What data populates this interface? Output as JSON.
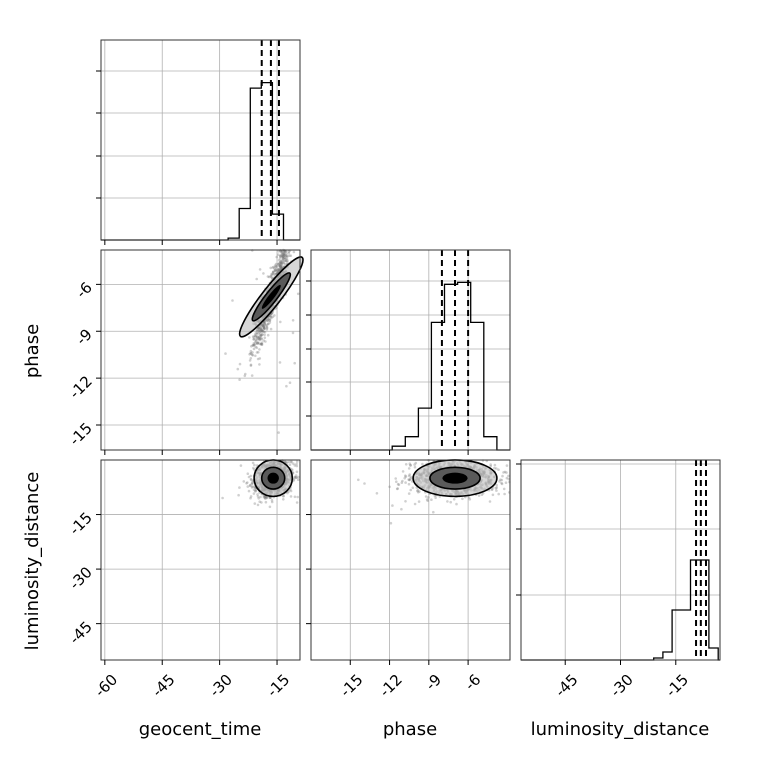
{
  "figure": {
    "type": "corner_plot",
    "parameters": [
      "geocent_time",
      "phase",
      "luminosity_distance"
    ],
    "grid": true,
    "quantile_lines": "dashed",
    "colors": {
      "frame": "#333333",
      "grid": "#b0b0b0",
      "ink": "#000000",
      "scatter": "#777777"
    }
  },
  "chart_data": [
    {
      "panel": "geocent_time",
      "type": "histogram",
      "xlim": [
        -61,
        -9
      ],
      "ylim": [
        0,
        1.08
      ],
      "tick_labels": [],
      "bins": [
        -27.8,
        -24.9,
        -22.0,
        -19.1,
        -16.2,
        -13.3,
        -10.4
      ],
      "counts": [
        0.01,
        0.17,
        0.82,
        0.85,
        0.14,
        0
      ],
      "quantiles": [
        -19.0,
        -16.6,
        -14.5
      ]
    },
    {
      "panel": "phase_vs_geocent_time",
      "type": "scatter",
      "xlim": [
        -61,
        -9
      ],
      "ylim": [
        -16.6,
        -3.8
      ],
      "xlabel": "",
      "ylabel": "phase",
      "ytick_labels": [
        "-6",
        "-9",
        "-12",
        "-15"
      ],
      "density_center": {
        "x": -16.5,
        "y": -6.8
      },
      "contours": 2,
      "points": 1000
    },
    {
      "panel": "phase",
      "type": "histogram",
      "xlim": [
        -18,
        -2.8
      ],
      "ylim": [
        0,
        1.05
      ],
      "tick_labels": [],
      "bins": [
        -11.8,
        -10.8,
        -9.8,
        -8.8,
        -7.8,
        -6.8,
        -5.8,
        -4.8,
        -3.8
      ],
      "counts": [
        0.02,
        0.07,
        0.22,
        0.67,
        0.87,
        0.88,
        0.67,
        0.07
      ],
      "quantiles": [
        -8.0,
        -7.0,
        -6.0
      ]
    },
    {
      "panel": "luminosity_distance_vs_geocent_time",
      "type": "scatter",
      "xlim": [
        -61,
        -9
      ],
      "ylim": [
        -55,
        0
      ],
      "xlabel": "geocent_time",
      "ylabel": "luminosity_distance",
      "xtick_labels": [
        "-60",
        "-45",
        "-30",
        "-15"
      ],
      "ytick_labels": [
        "-15",
        "-30",
        "-45"
      ],
      "density_center": {
        "x": -16.0,
        "y": -5.0
      },
      "contours": 2,
      "points": 1000
    },
    {
      "panel": "luminosity_distance_vs_phase",
      "type": "scatter",
      "xlim": [
        -18,
        -2.8
      ],
      "ylim": [
        -55,
        0
      ],
      "xlabel": "phase",
      "ylabel": "",
      "xtick_labels": [
        "-15",
        "-12",
        "-9",
        "-6"
      ],
      "density_center": {
        "x": -7.0,
        "y": -5.0
      },
      "contours": 2,
      "points": 1000
    },
    {
      "panel": "luminosity_distance",
      "type": "histogram",
      "xlim": [
        -57,
        -3
      ],
      "ylim": [
        0,
        1.0
      ],
      "xlabel": "luminosity_distance",
      "xtick_labels": [
        "-45",
        "-30",
        "-15"
      ],
      "bins": [
        -21.0,
        -18.5,
        -16.0,
        -13.5,
        -11.0,
        -8.5,
        -6.0,
        -3.5
      ],
      "counts": [
        0.01,
        0.04,
        0.25,
        0.25,
        0.5,
        0.5,
        0.06
      ],
      "quantiles": [
        -9.5,
        -8.2,
        -6.8
      ]
    }
  ]
}
